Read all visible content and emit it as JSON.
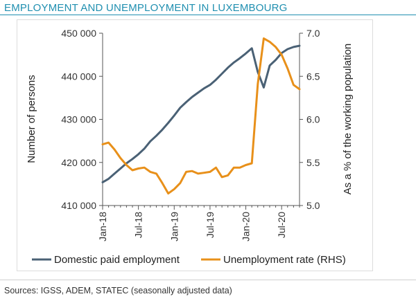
{
  "header": {
    "title": "EMPLOYMENT AND UNEMPLOYMENT IN LUXEMBOURG"
  },
  "footer": {
    "source": "Sources: IGSS, ADEM, STATEC (seasonally adjusted data)"
  },
  "chart_data": {
    "type": "line",
    "title": "EMPLOYMENT AND UNEMPLOYMENT IN LUXEMBOURG",
    "ylabel_left": "Number of persons",
    "ylabel_right": "As a % of the working population",
    "ylim_left": [
      410000,
      450000
    ],
    "ylim_right": [
      5.0,
      7.0
    ],
    "yticks_left": [
      {
        "value": 410000,
        "label": "410 000"
      },
      {
        "value": 420000,
        "label": "420 000"
      },
      {
        "value": 430000,
        "label": "430 000"
      },
      {
        "value": 440000,
        "label": "440 000"
      },
      {
        "value": 450000,
        "label": "450 000"
      }
    ],
    "yticks_right": [
      {
        "value": 5.0,
        "label": "5.0"
      },
      {
        "value": 5.5,
        "label": "5.5"
      },
      {
        "value": 6.0,
        "label": "6.0"
      },
      {
        "value": 6.5,
        "label": "6.5"
      },
      {
        "value": 7.0,
        "label": "7.0"
      }
    ],
    "x_months": [
      "Jan-18",
      "Feb-18",
      "Mar-18",
      "Apr-18",
      "May-18",
      "Jun-18",
      "Jul-18",
      "Aug-18",
      "Sep-18",
      "Oct-18",
      "Nov-18",
      "Dec-18",
      "Jan-19",
      "Feb-19",
      "Mar-19",
      "Apr-19",
      "May-19",
      "Jun-19",
      "Jul-19",
      "Aug-19",
      "Sep-19",
      "Oct-19",
      "Nov-19",
      "Dec-19",
      "Jan-20",
      "Feb-20",
      "Mar-20",
      "Apr-20",
      "May-20",
      "Jun-20",
      "Jul-20",
      "Aug-20",
      "Sep-20",
      "Oct-20"
    ],
    "xtick_labels": [
      {
        "index": 0,
        "label": "Jan-18"
      },
      {
        "index": 6,
        "label": "Jul-18"
      },
      {
        "index": 12,
        "label": "Jan-19"
      },
      {
        "index": 18,
        "label": "Jul-19"
      },
      {
        "index": 24,
        "label": "Jan-20"
      },
      {
        "index": 30,
        "label": "Jul-20"
      }
    ],
    "grid": false,
    "legend_position": "bottom",
    "series": [
      {
        "name": "Domestic paid employment",
        "axis": "left",
        "color": "#4a6175",
        "values": [
          415400,
          416200,
          417400,
          418600,
          419800,
          420800,
          421900,
          423200,
          424900,
          426200,
          427600,
          429200,
          430900,
          432700,
          434000,
          435200,
          436200,
          437200,
          438000,
          439200,
          440600,
          442000,
          443200,
          444200,
          445300,
          446500,
          441000,
          437400,
          442500,
          443800,
          445400,
          446300,
          446800,
          447100
        ]
      },
      {
        "name": "Unemployment rate (RHS)",
        "axis": "right",
        "color": "#e8901a",
        "values": [
          5.71,
          5.73,
          5.65,
          5.55,
          5.47,
          5.41,
          5.43,
          5.44,
          5.39,
          5.37,
          5.26,
          5.14,
          5.19,
          5.26,
          5.39,
          5.4,
          5.37,
          5.38,
          5.39,
          5.44,
          5.33,
          5.35,
          5.44,
          5.44,
          5.47,
          5.49,
          6.41,
          6.94,
          6.9,
          6.84,
          6.75,
          6.59,
          6.4,
          6.35
        ]
      }
    ]
  }
}
